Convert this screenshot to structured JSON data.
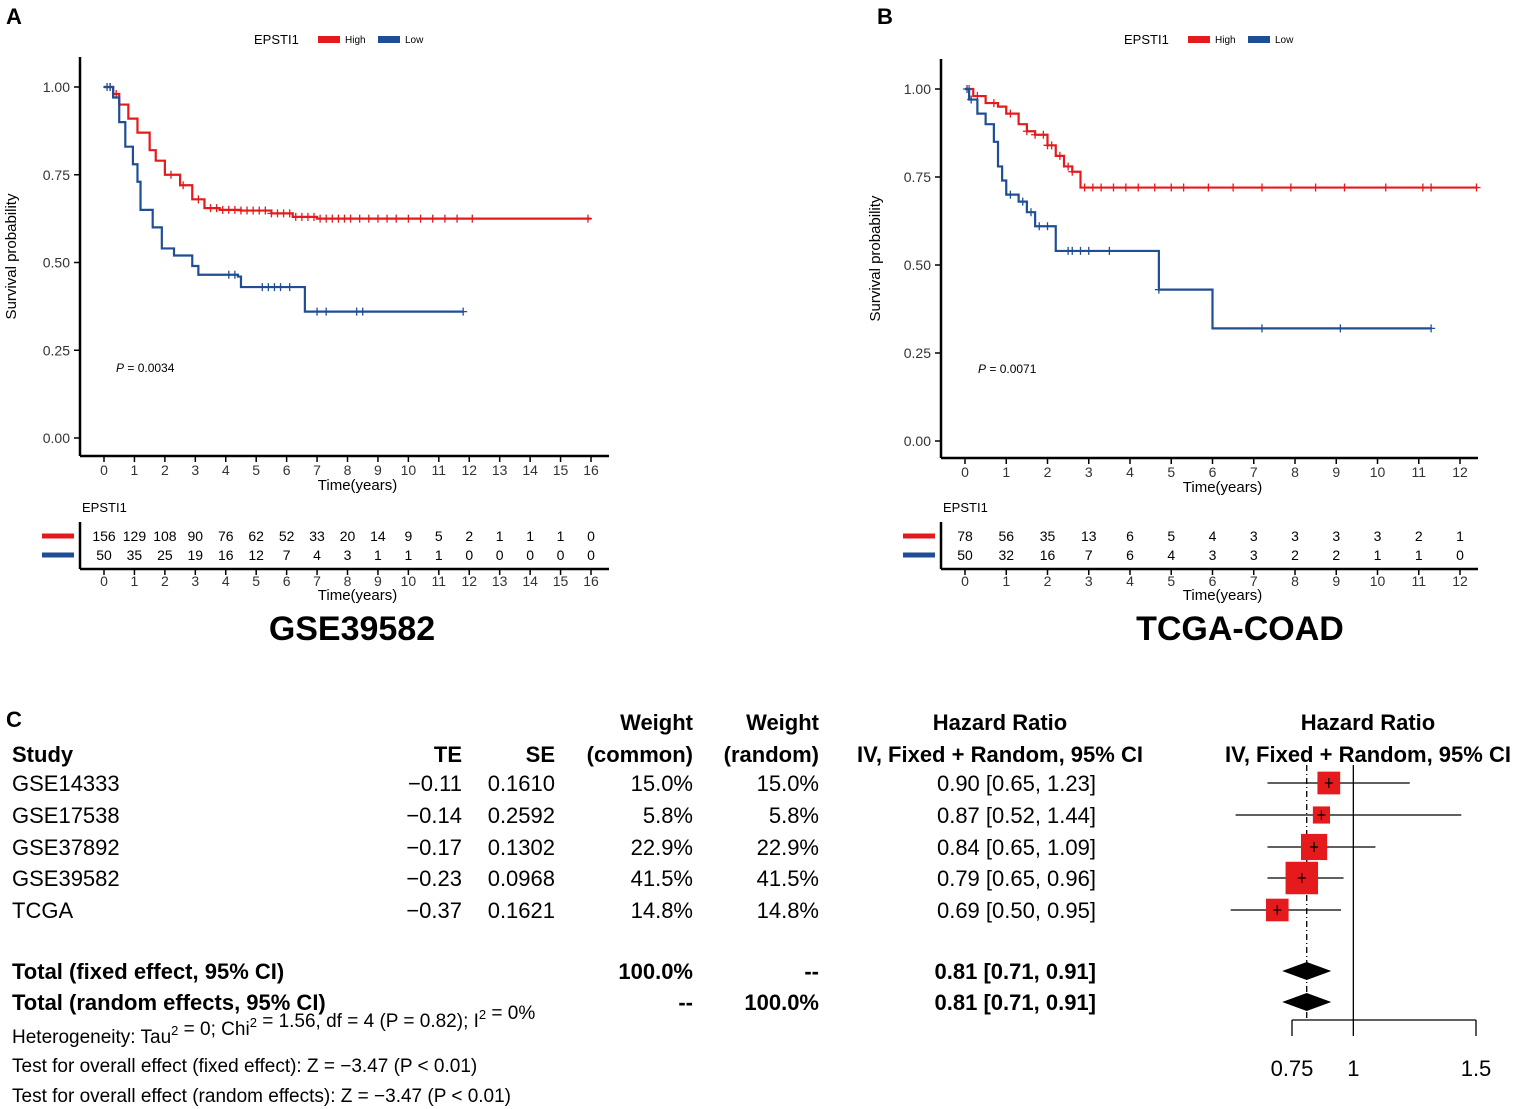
{
  "chart_data": [
    {
      "panel": "A",
      "type": "line",
      "subtype": "kaplan-meier",
      "title": "GSE39582",
      "legend_title": "EPSTI1",
      "legend": [
        "High",
        "Low"
      ],
      "colors": {
        "High": "#e41a1c",
        "Low": "#1f4e96"
      },
      "xlabel": "Time(years)",
      "ylabel": "Survival probability",
      "xlim": [
        0,
        16
      ],
      "ylim": [
        0,
        1
      ],
      "xticks": [
        "0",
        "1",
        "2",
        "3",
        "4",
        "5",
        "6",
        "7",
        "8",
        "9",
        "10",
        "11",
        "12",
        "13",
        "14",
        "15",
        "16"
      ],
      "yticks": [
        "0.00",
        "0.25",
        "0.50",
        "0.75",
        "1.00"
      ],
      "pvalue_label": "P",
      "pvalue": "= 0.0034",
      "series": [
        {
          "name": "High",
          "points": [
            [
              0,
              1.0
            ],
            [
              0.3,
              0.98
            ],
            [
              0.5,
              0.95
            ],
            [
              0.8,
              0.91
            ],
            [
              1.1,
              0.87
            ],
            [
              1.5,
              0.82
            ],
            [
              1.7,
              0.79
            ],
            [
              2.0,
              0.75
            ],
            [
              2.5,
              0.72
            ],
            [
              2.9,
              0.68
            ],
            [
              3.3,
              0.655
            ],
            [
              3.8,
              0.65
            ],
            [
              4.5,
              0.648
            ],
            [
              5.5,
              0.64
            ],
            [
              6.2,
              0.63
            ],
            [
              7.0,
              0.625
            ],
            [
              16.0,
              0.625
            ]
          ],
          "censor": [
            0.2,
            0.4,
            2.2,
            2.6,
            3.1,
            3.5,
            3.7,
            3.9,
            4.1,
            4.3,
            4.5,
            4.7,
            4.9,
            5.1,
            5.3,
            5.5,
            5.7,
            5.9,
            6.1,
            6.3,
            6.5,
            6.7,
            6.9,
            7.1,
            7.3,
            7.5,
            7.7,
            7.9,
            8.1,
            8.4,
            8.7,
            9.0,
            9.3,
            9.6,
            10.0,
            10.4,
            10.8,
            11.2,
            11.6,
            12.1,
            15.9
          ]
        },
        {
          "name": "Low",
          "points": [
            [
              0,
              1.0
            ],
            [
              0.3,
              0.97
            ],
            [
              0.5,
              0.9
            ],
            [
              0.7,
              0.83
            ],
            [
              0.95,
              0.78
            ],
            [
              1.1,
              0.73
            ],
            [
              1.2,
              0.65
            ],
            [
              1.6,
              0.6
            ],
            [
              1.9,
              0.54
            ],
            [
              2.3,
              0.52
            ],
            [
              2.9,
              0.49
            ],
            [
              3.1,
              0.465
            ],
            [
              4.4,
              0.46
            ],
            [
              4.5,
              0.43
            ],
            [
              6.5,
              0.43
            ],
            [
              6.6,
              0.36
            ],
            [
              11.8,
              0.36
            ]
          ],
          "censor": [
            0.1,
            0.2,
            4.1,
            4.3,
            5.2,
            5.4,
            5.6,
            5.8,
            6.1,
            7.0,
            7.3,
            8.3,
            8.5,
            11.8
          ]
        }
      ],
      "risk_table": {
        "title": "EPSTI1",
        "rows": [
          {
            "name": "High",
            "values": [
              "156",
              "129",
              "108",
              "90",
              "76",
              "62",
              "52",
              "33",
              "20",
              "14",
              "9",
              "5",
              "2",
              "1",
              "1",
              "1",
              "0"
            ]
          },
          {
            "name": "Low",
            "values": [
              "50",
              "35",
              "25",
              "19",
              "16",
              "12",
              "7",
              "4",
              "3",
              "1",
              "1",
              "1",
              "0",
              "0",
              "0",
              "0",
              "0"
            ]
          }
        ]
      }
    },
    {
      "panel": "B",
      "type": "line",
      "subtype": "kaplan-meier",
      "title": "TCGA-COAD",
      "legend_title": "EPSTI1",
      "legend": [
        "High",
        "Low"
      ],
      "colors": {
        "High": "#e41a1c",
        "Low": "#1f4e96"
      },
      "xlabel": "Time(years)",
      "ylabel": "Survival probability",
      "xlim": [
        0,
        12
      ],
      "ylim": [
        0,
        1
      ],
      "xticks": [
        "0",
        "1",
        "2",
        "3",
        "4",
        "5",
        "6",
        "7",
        "8",
        "9",
        "10",
        "11",
        "12"
      ],
      "yticks": [
        "0.00",
        "0.25",
        "0.50",
        "0.75",
        "1.00"
      ],
      "pvalue_label": "P",
      "pvalue": "= 0.0071",
      "series": [
        {
          "name": "High",
          "points": [
            [
              0,
              1.0
            ],
            [
              0.2,
              0.98
            ],
            [
              0.5,
              0.96
            ],
            [
              0.8,
              0.95
            ],
            [
              1.0,
              0.93
            ],
            [
              1.3,
              0.9
            ],
            [
              1.5,
              0.88
            ],
            [
              1.7,
              0.87
            ],
            [
              2.0,
              0.84
            ],
            [
              2.2,
              0.81
            ],
            [
              2.4,
              0.78
            ],
            [
              2.6,
              0.765
            ],
            [
              2.8,
              0.72
            ],
            [
              12.4,
              0.72
            ]
          ],
          "censor": [
            0.1,
            0.3,
            0.7,
            1.1,
            1.5,
            1.7,
            1.9,
            2.0,
            2.1,
            2.3,
            2.5,
            2.6,
            2.9,
            3.1,
            3.3,
            3.6,
            3.9,
            4.2,
            4.6,
            5.0,
            5.3,
            5.9,
            6.5,
            7.2,
            7.9,
            8.5,
            9.2,
            10.2,
            11.1,
            11.3,
            12.4
          ]
        },
        {
          "name": "Low",
          "points": [
            [
              0,
              1.0
            ],
            [
              0.1,
              0.97
            ],
            [
              0.3,
              0.93
            ],
            [
              0.5,
              0.9
            ],
            [
              0.7,
              0.85
            ],
            [
              0.8,
              0.78
            ],
            [
              0.9,
              0.74
            ],
            [
              1.0,
              0.7
            ],
            [
              1.3,
              0.68
            ],
            [
              1.5,
              0.65
            ],
            [
              1.7,
              0.61
            ],
            [
              2.2,
              0.54
            ],
            [
              4.7,
              0.54
            ],
            [
              4.7,
              0.43
            ],
            [
              6.0,
              0.43
            ],
            [
              6.0,
              0.32
            ],
            [
              11.3,
              0.32
            ]
          ],
          "censor": [
            0.05,
            0.15,
            1.1,
            1.4,
            1.6,
            1.8,
            2.0,
            2.5,
            2.6,
            2.8,
            3.0,
            3.5,
            4.7,
            7.2,
            9.1,
            11.3
          ]
        }
      ],
      "risk_table": {
        "title": "EPSTI1",
        "rows": [
          {
            "name": "High",
            "values": [
              "78",
              "56",
              "35",
              "13",
              "6",
              "5",
              "4",
              "3",
              "3",
              "3",
              "3",
              "2",
              "1"
            ]
          },
          {
            "name": "Low",
            "values": [
              "50",
              "32",
              "16",
              "7",
              "6",
              "4",
              "3",
              "3",
              "2",
              "2",
              "1",
              "1",
              "0"
            ]
          }
        ]
      }
    },
    {
      "panel": "C",
      "type": "forest",
      "headers": {
        "study": "Study",
        "te": "TE",
        "se": "SE",
        "weight_common": [
          "Weight",
          "(common)"
        ],
        "weight_random": [
          "Weight",
          "(random)"
        ],
        "hr": [
          "Hazard Ratio",
          "IV, Fixed + Random, 95% CI"
        ],
        "plot": [
          "Hazard Ratio",
          "IV, Fixed + Random, 95% CI"
        ]
      },
      "studies": [
        {
          "study": "GSE14333",
          "te": "−0.11",
          "se": "0.1610",
          "w_common": "15.0%",
          "w_random": "15.0%",
          "hr_text": "0.90 [0.65, 1.23]",
          "hr": 0.9,
          "lo": 0.65,
          "hi": 1.23,
          "weight": 15.0
        },
        {
          "study": "GSE17538",
          "te": "−0.14",
          "se": "0.2592",
          "w_common": "5.8%",
          "w_random": "5.8%",
          "hr_text": "0.87 [0.52, 1.44]",
          "hr": 0.87,
          "lo": 0.52,
          "hi": 1.44,
          "weight": 5.8
        },
        {
          "study": "GSE37892",
          "te": "−0.17",
          "se": "0.1302",
          "w_common": "22.9%",
          "w_random": "22.9%",
          "hr_text": "0.84 [0.65, 1.09]",
          "hr": 0.84,
          "lo": 0.65,
          "hi": 1.09,
          "weight": 22.9
        },
        {
          "study": "GSE39582",
          "te": "−0.23",
          "se": "0.0968",
          "w_common": "41.5%",
          "w_random": "41.5%",
          "hr_text": "0.79 [0.65, 0.96]",
          "hr": 0.79,
          "lo": 0.65,
          "hi": 0.96,
          "weight": 41.5
        },
        {
          "study": "TCGA",
          "te": "−0.37",
          "se": "0.1621",
          "w_common": "14.8%",
          "w_random": "14.8%",
          "hr_text": "0.69 [0.50, 0.95]",
          "hr": 0.69,
          "lo": 0.5,
          "hi": 0.95,
          "weight": 14.8
        }
      ],
      "totals": [
        {
          "label": "Total (fixed effect, 95% CI)",
          "w_common": "100.0%",
          "w_random": "--",
          "hr_text": "0.81 [0.71, 0.91]",
          "hr": 0.81,
          "lo": 0.71,
          "hi": 0.91
        },
        {
          "label": "Total (random effects, 95% CI)",
          "w_common": "--",
          "w_random": "100.0%",
          "hr_text": "0.81 [0.71, 0.91]",
          "hr": 0.81,
          "lo": 0.71,
          "hi": 0.91
        }
      ],
      "notes": {
        "heterogeneity": {
          "a": "Heterogeneity: Tau",
          "b": " = 0; Chi",
          "c": " = 1.56, df = 4 (P = 0.82); I",
          "d": " = 0%",
          "sup": "2"
        },
        "fixed": "Test for overall effect (fixed effect): Z = −3.47 (P < 0.01)",
        "random": "Test for overall effect (random effects): Z = −3.47 (P < 0.01)"
      },
      "axis": {
        "ticks": [
          0.75,
          1,
          1.5
        ],
        "tick_labels": [
          "0.75",
          "1",
          "1.5"
        ],
        "range": [
          0.5,
          1.5
        ],
        "reference": 1
      }
    }
  ]
}
